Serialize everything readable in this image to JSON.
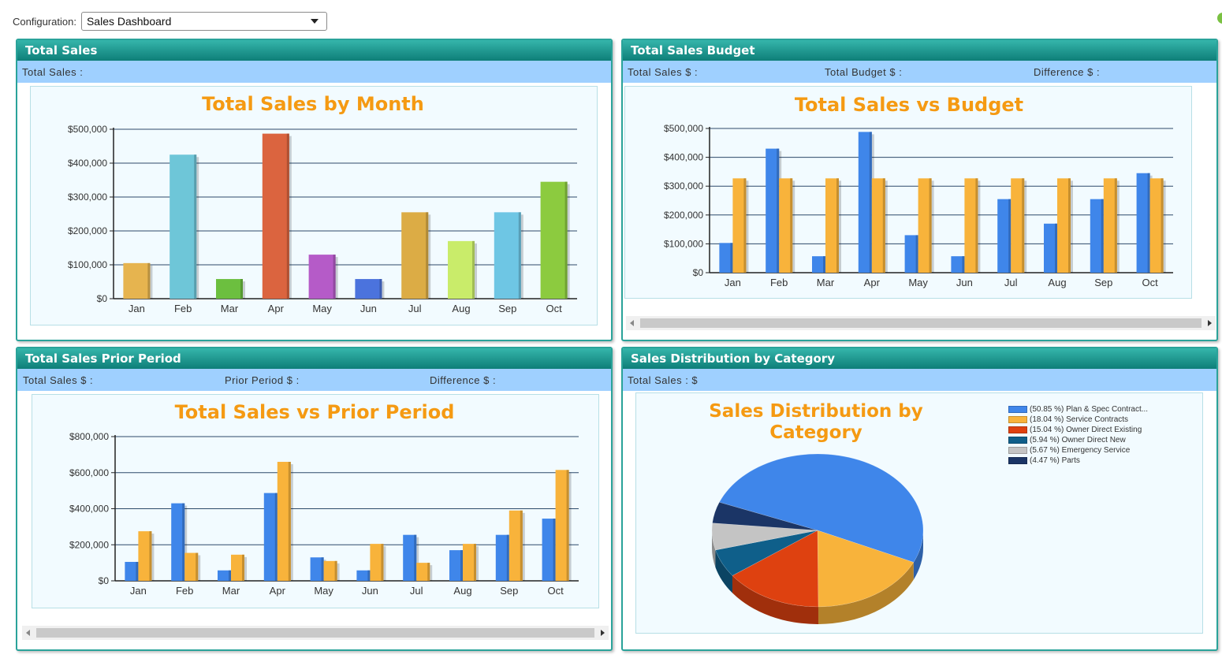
{
  "config": {
    "label": "Configuration:",
    "selected": "Sales Dashboard"
  },
  "colors": {
    "accent": "#2aa39a",
    "title_orange": "#f59a12",
    "sub_bar": "#9fd0ff",
    "sales_blue": "#3f86ea",
    "budget_orange": "#f8b33b"
  },
  "panels": {
    "total_sales": {
      "title": "Total Sales",
      "sub": [
        "Total Sales :"
      ]
    },
    "budget": {
      "title": "Total Sales Budget",
      "sub": [
        "Total Sales $ :",
        "Total Budget $ :",
        "Difference $ :"
      ]
    },
    "prior": {
      "title": "Total Sales Prior Period",
      "sub": [
        "Total Sales $ :",
        "Prior Period $ :",
        "Difference $ :"
      ]
    },
    "distribution": {
      "title": "Sales Distribution by Category",
      "sub": [
        "Total Sales : $"
      ]
    }
  },
  "chart_data": [
    {
      "id": "total_sales",
      "type": "bar",
      "title": "Total Sales by Month",
      "categories": [
        "Jan",
        "Feb",
        "Mar",
        "Apr",
        "May",
        "Jun",
        "Jul",
        "Aug",
        "Sep",
        "Oct"
      ],
      "values": [
        105000,
        425000,
        58000,
        487000,
        130000,
        58000,
        255000,
        170000,
        255000,
        345000
      ],
      "colors": [
        "#e6b44f",
        "#6ec6d8",
        "#6cbf3f",
        "#db643f",
        "#b55bc8",
        "#4b73dd",
        "#dcac45",
        "#c9ec6a",
        "#6ec6e4",
        "#8ccb3f"
      ],
      "ylim": [
        0,
        500000
      ],
      "yticks": [
        "$0",
        "$100,000",
        "$200,000",
        "$300,000",
        "$400,000",
        "$500,000"
      ],
      "grid": true
    },
    {
      "id": "budget",
      "type": "bar",
      "title": "Total Sales vs Budget",
      "categories": [
        "Jan",
        "Feb",
        "Mar",
        "Apr",
        "May",
        "Jun",
        "Jul",
        "Aug",
        "Sep",
        "Oct"
      ],
      "series": [
        {
          "color": "#3f86ea",
          "values": [
            103000,
            430000,
            57000,
            488000,
            130000,
            57000,
            255000,
            170000,
            255000,
            345000
          ]
        },
        {
          "color": "#f8b33b",
          "values": [
            327000,
            327000,
            327000,
            327000,
            327000,
            327000,
            327000,
            327000,
            327000,
            327000
          ]
        }
      ],
      "ylim": [
        0,
        500000
      ],
      "yticks": [
        "$0",
        "$100,000",
        "$200,000",
        "$300,000",
        "$400,000",
        "$500,000"
      ],
      "grid": true
    },
    {
      "id": "prior",
      "type": "bar",
      "title": "Total Sales vs Prior Period",
      "categories": [
        "Jan",
        "Feb",
        "Mar",
        "Apr",
        "May",
        "Jun",
        "Jul",
        "Aug",
        "Sep",
        "Oct"
      ],
      "series": [
        {
          "color": "#3f86ea",
          "values": [
            105000,
            430000,
            58000,
            487000,
            130000,
            58000,
            255000,
            170000,
            255000,
            345000
          ]
        },
        {
          "color": "#f8b33b",
          "values": [
            275000,
            155000,
            145000,
            660000,
            110000,
            205000,
            100000,
            205000,
            390000,
            615000
          ]
        }
      ],
      "ylim": [
        0,
        800000
      ],
      "yticks": [
        "$0",
        "$200,000",
        "$400,000",
        "$600,000",
        "$800,000"
      ],
      "grid": true
    },
    {
      "id": "distribution",
      "type": "pie",
      "title": [
        "Sales Distribution by",
        "Category"
      ],
      "slices": [
        {
          "label": "(50.85 %) Plan & Spec Contract...",
          "value": 50.85,
          "color": "#3f86ea"
        },
        {
          "label": "(18.04 %) Service Contracts",
          "value": 18.04,
          "color": "#f8b33b"
        },
        {
          "label": "(15.04 %) Owner Direct Existing",
          "value": 15.04,
          "color": "#de4110"
        },
        {
          "label": "(5.94 %) Owner Direct New",
          "value": 5.94,
          "color": "#0f5f8a"
        },
        {
          "label": "(5.67 %) Emergency Service",
          "value": 5.67,
          "color": "#c4c4c4"
        },
        {
          "label": "(4.47 %) Parts",
          "value": 4.47,
          "color": "#1b3566"
        }
      ],
      "legend": "top-right"
    }
  ]
}
